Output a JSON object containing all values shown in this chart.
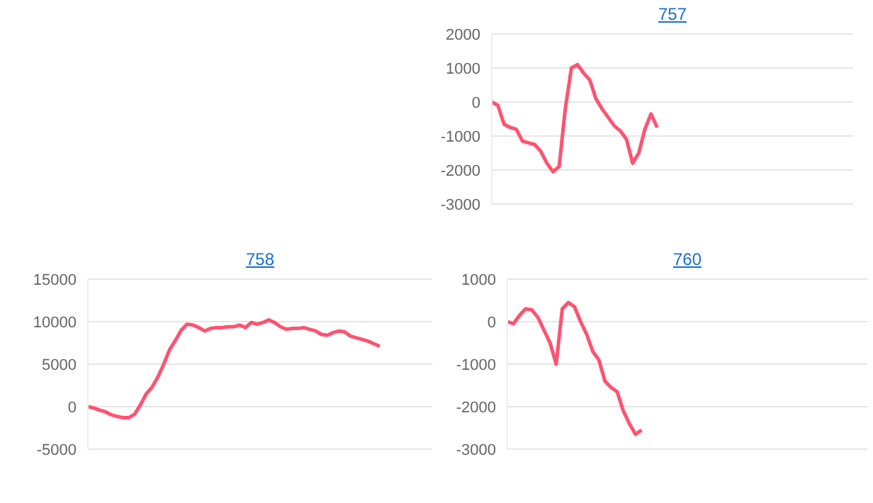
{
  "chart_data": [
    {
      "type": "line",
      "title": "757",
      "grid": "y",
      "tick_labels": "y",
      "ylim": [
        -3000,
        2000
      ],
      "yticks": [
        -3000,
        -2000,
        -1000,
        0,
        1000,
        2000
      ],
      "categories": [
        null,
        null,
        null,
        null,
        null,
        null,
        null,
        null,
        null,
        null,
        null,
        null,
        null,
        null,
        null,
        null,
        null,
        null,
        null,
        null,
        null,
        null,
        null,
        null,
        null,
        null,
        null,
        null,
        null,
        null,
        null,
        null,
        null,
        null,
        null,
        null,
        null,
        null,
        null,
        null,
        null,
        null,
        null,
        null,
        null,
        null,
        null,
        null,
        null,
        null,
        null,
        null,
        null,
        null,
        null,
        null,
        null,
        null,
        null,
        null
      ],
      "series": [
        {
          "color": "#fe5370",
          "values": [
            0,
            -100,
            -650,
            -750,
            -800,
            -1150,
            -1200,
            -1250,
            -1450,
            -1800,
            -2050,
            -1900,
            -200,
            1000,
            1100,
            850,
            650,
            100,
            -200,
            -450,
            -700,
            -850,
            -1100,
            -1800,
            -1500,
            -800,
            -350,
            -750,
            null,
            null,
            null,
            null,
            null,
            null,
            null,
            null,
            null,
            null,
            null,
            null,
            null,
            null,
            null,
            null,
            null,
            null,
            null,
            null,
            null,
            null,
            null,
            null,
            null,
            null,
            null,
            null,
            null,
            null,
            null,
            null
          ]
        }
      ]
    },
    {
      "type": "line",
      "title": "758",
      "grid": "y",
      "tick_labels": "y",
      "ylim": [
        -5000,
        15000
      ],
      "yticks": [
        -5000,
        0,
        5000,
        10000,
        15000
      ],
      "categories": [
        null,
        null,
        null,
        null,
        null,
        null,
        null,
        null,
        null,
        null,
        null,
        null,
        null,
        null,
        null,
        null,
        null,
        null,
        null,
        null,
        null,
        null,
        null,
        null,
        null,
        null,
        null,
        null,
        null,
        null,
        null,
        null,
        null,
        null,
        null,
        null,
        null,
        null,
        null,
        null,
        null,
        null,
        null,
        null,
        null,
        null,
        null,
        null,
        null,
        null,
        null,
        null,
        null,
        null,
        null,
        null,
        null,
        null,
        null,
        null
      ],
      "series": [
        {
          "color": "#fe5370",
          "values": [
            0,
            -150,
            -400,
            -600,
            -950,
            -1150,
            -1300,
            -1300,
            -900,
            200,
            1500,
            2300,
            3500,
            5000,
            6700,
            7800,
            9000,
            9700,
            9600,
            9300,
            8900,
            9200,
            9300,
            9300,
            9400,
            9400,
            9600,
            9300,
            9900,
            9700,
            9900,
            10200,
            9900,
            9400,
            9100,
            9200,
            9200,
            9300,
            9100,
            8900,
            8500,
            8400,
            8700,
            8900,
            8800,
            8300,
            8100,
            7900,
            7700,
            7400,
            7100,
            null,
            null,
            null,
            null,
            null,
            null,
            null,
            null,
            null
          ]
        }
      ]
    },
    {
      "type": "line",
      "title": "760",
      "grid": "y",
      "tick_labels": "y",
      "ylim": [
        -3000,
        1000
      ],
      "yticks": [
        -3000,
        -2000,
        -1000,
        0,
        1000
      ],
      "categories": [
        null,
        null,
        null,
        null,
        null,
        null,
        null,
        null,
        null,
        null,
        null,
        null,
        null,
        null,
        null,
        null,
        null,
        null,
        null,
        null,
        null,
        null,
        null,
        null,
        null,
        null,
        null,
        null,
        null,
        null,
        null,
        null,
        null,
        null,
        null,
        null,
        null,
        null,
        null,
        null,
        null,
        null,
        null,
        null,
        null,
        null,
        null,
        null,
        null,
        null,
        null,
        null,
        null,
        null,
        null,
        null,
        null,
        null,
        null,
        null
      ],
      "series": [
        {
          "color": "#fe5370",
          "values": [
            0,
            -50,
            150,
            300,
            280,
            100,
            -200,
            -500,
            -1000,
            300,
            450,
            350,
            0,
            -300,
            -700,
            -900,
            -1400,
            -1550,
            -1650,
            -2100,
            -2400,
            -2650,
            -2550,
            null,
            null,
            null,
            null,
            null,
            null,
            null,
            null,
            null,
            null,
            null,
            null,
            null,
            null,
            null,
            null,
            null,
            null,
            null,
            null,
            null,
            null,
            null,
            null,
            null,
            null,
            null,
            null,
            null,
            null,
            null,
            null,
            null,
            null,
            null,
            null,
            null
          ]
        }
      ]
    }
  ]
}
